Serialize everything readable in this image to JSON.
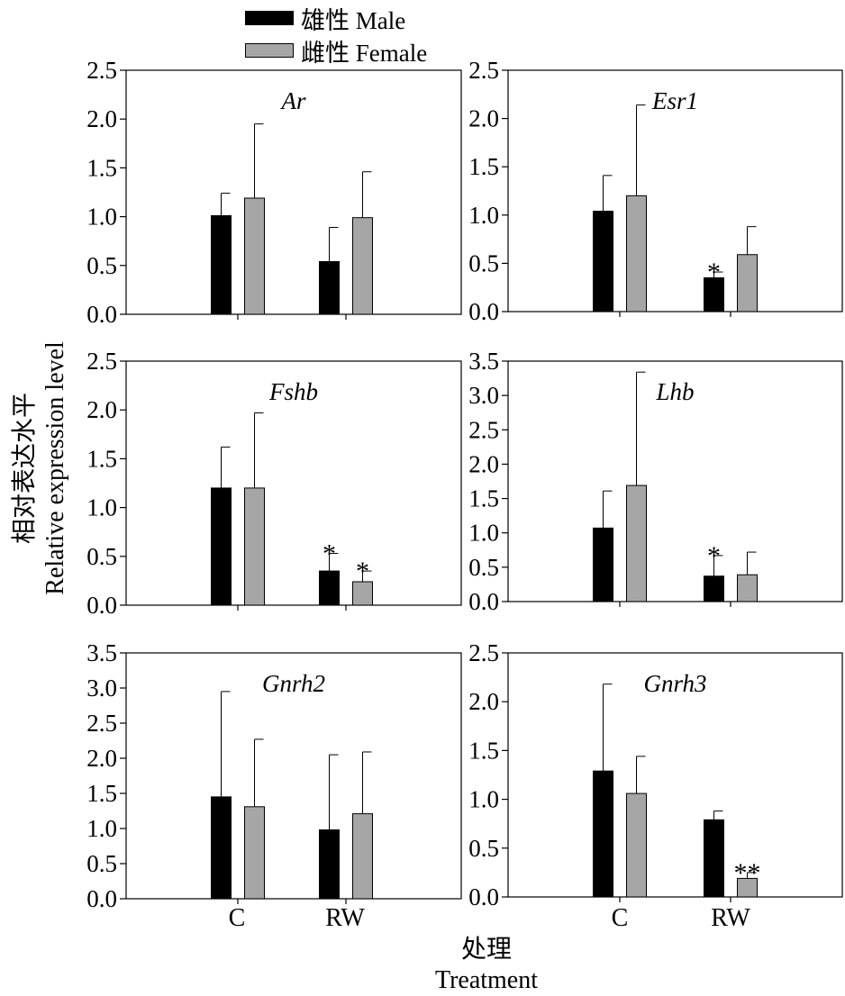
{
  "legend": {
    "male_label": "雄性 Male",
    "female_label": "雌性 Female",
    "male_color": "#000000",
    "female_color": "#a6a6a6"
  },
  "y_axis_label": {
    "line1": "相对表达水平",
    "line2": "Relative expression level"
  },
  "x_axis_label": {
    "line1": "处理",
    "line2": "Treatment"
  },
  "x_categories": [
    "C",
    "RW"
  ],
  "chart_data": [
    {
      "type": "bar",
      "title": "Ar",
      "categories": [
        "C",
        "RW"
      ],
      "ylim": [
        0,
        2.5
      ],
      "yticks": [
        "0.0",
        "0.5",
        "1.0",
        "1.5",
        "2.0",
        "2.5"
      ],
      "series": [
        {
          "name": "雄性 Male",
          "values": [
            1.01,
            0.54
          ],
          "error": [
            0.23,
            0.35
          ],
          "sig": [
            "",
            ""
          ]
        },
        {
          "name": "雌性 Female",
          "values": [
            1.19,
            0.99
          ],
          "error": [
            0.76,
            0.47
          ],
          "sig": [
            "",
            ""
          ]
        }
      ]
    },
    {
      "type": "bar",
      "title": "Esr1",
      "categories": [
        "C",
        "RW"
      ],
      "ylim": [
        0,
        2.5
      ],
      "yticks": [
        "0.0",
        "0.5",
        "1.0",
        "1.5",
        "2.0",
        "2.5"
      ],
      "series": [
        {
          "name": "雄性 Male",
          "values": [
            1.04,
            0.35
          ],
          "error": [
            0.37,
            0.06
          ],
          "sig": [
            "",
            "*"
          ]
        },
        {
          "name": "雌性 Female",
          "values": [
            1.2,
            0.59
          ],
          "error": [
            0.94,
            0.29
          ],
          "sig": [
            "",
            ""
          ]
        }
      ]
    },
    {
      "type": "bar",
      "title": "Fshb",
      "categories": [
        "C",
        "RW"
      ],
      "ylim": [
        0,
        2.5
      ],
      "yticks": [
        "0.0",
        "0.5",
        "1.0",
        "1.5",
        "2.0",
        "2.5"
      ],
      "series": [
        {
          "name": "雄性 Male",
          "values": [
            1.2,
            0.35
          ],
          "error": [
            0.42,
            0.18
          ],
          "sig": [
            "",
            "*"
          ]
        },
        {
          "name": "雌性 Female",
          "values": [
            1.2,
            0.24
          ],
          "error": [
            0.77,
            0.11
          ],
          "sig": [
            "",
            "*"
          ]
        }
      ]
    },
    {
      "type": "bar",
      "title": "Lhb",
      "categories": [
        "C",
        "RW"
      ],
      "ylim": [
        0,
        3.5
      ],
      "yticks": [
        "0.0",
        "0.5",
        "1.0",
        "1.5",
        "2.0",
        "2.5",
        "3.0",
        "3.5"
      ],
      "series": [
        {
          "name": "雄性 Male",
          "values": [
            1.07,
            0.37
          ],
          "error": [
            0.54,
            0.3
          ],
          "sig": [
            "",
            "*"
          ]
        },
        {
          "name": "雌性 Female",
          "values": [
            1.69,
            0.39
          ],
          "error": [
            1.65,
            0.33
          ],
          "sig": [
            "",
            ""
          ]
        }
      ]
    },
    {
      "type": "bar",
      "title": "Gnrh2",
      "categories": [
        "C",
        "RW"
      ],
      "ylim": [
        0,
        3.5
      ],
      "yticks": [
        "0.0",
        "0.5",
        "1.0",
        "1.5",
        "2.0",
        "2.5",
        "3.0",
        "3.5"
      ],
      "series": [
        {
          "name": "雄性 Male",
          "values": [
            1.45,
            0.98
          ],
          "error": [
            1.5,
            1.07
          ],
          "sig": [
            "",
            ""
          ]
        },
        {
          "name": "雌性 Female",
          "values": [
            1.31,
            1.21
          ],
          "error": [
            0.96,
            0.88
          ],
          "sig": [
            "",
            ""
          ]
        }
      ]
    },
    {
      "type": "bar",
      "title": "Gnrh3",
      "categories": [
        "C",
        "RW"
      ],
      "ylim": [
        0,
        2.5
      ],
      "yticks": [
        "0.0",
        "0.5",
        "1.0",
        "1.5",
        "2.0",
        "2.5"
      ],
      "series": [
        {
          "name": "雄性 Male",
          "values": [
            1.29,
            0.79
          ],
          "error": [
            0.89,
            0.09
          ],
          "sig": [
            "",
            ""
          ]
        },
        {
          "name": "雌性 Female",
          "values": [
            1.06,
            0.19
          ],
          "error": [
            0.38,
            0.06
          ],
          "sig": [
            "",
            "**"
          ]
        }
      ]
    }
  ]
}
